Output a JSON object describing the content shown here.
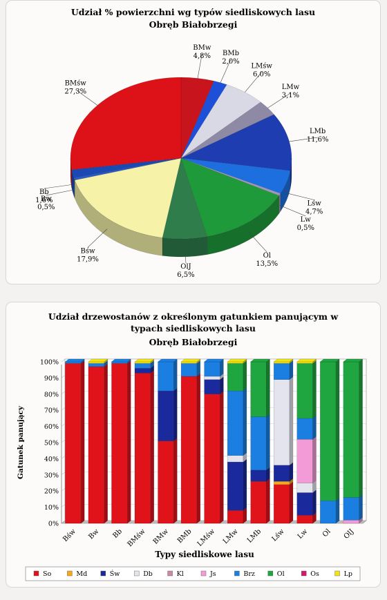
{
  "chart_data": [
    {
      "type": "pie",
      "title": "Udział % powierzchni wg typów siedliskowych lasu",
      "subtitle": "Obręb Białobrzegi",
      "slices": [
        {
          "label": "BMw",
          "value": 4.8,
          "text": "4,8%",
          "color": "#c8141c"
        },
        {
          "label": "BMb",
          "value": 2.0,
          "text": "2,0%",
          "color": "#1e4fd8"
        },
        {
          "label": "LMśw",
          "value": 6.0,
          "text": "6,0%",
          "color": "#d9d9e6"
        },
        {
          "label": "LMw",
          "value": 3.1,
          "text": "3,1%",
          "color": "#8e8aa5"
        },
        {
          "label": "LMb",
          "value": 11.6,
          "text": "11,6%",
          "color": "#1e3db0"
        },
        {
          "label": "Lśw",
          "value": 4.7,
          "text": "4,7%",
          "color": "#1d6fe0"
        },
        {
          "label": "Lw",
          "value": 0.5,
          "text": "0,5%",
          "color": "#9a9ab8"
        },
        {
          "label": "Ol",
          "value": 13.5,
          "text": "13,5%",
          "color": "#1e9a3a"
        },
        {
          "label": "OlJ",
          "value": 6.5,
          "text": "6,5%",
          "color": "#2e7d4b"
        },
        {
          "label": "Bśw",
          "value": 17.9,
          "text": "17,9%",
          "color": "#f6f3a8"
        },
        {
          "label": "Bw",
          "value": 0.5,
          "text": "0,5%",
          "color": "#2a59c8"
        },
        {
          "label": "Bb",
          "value": 1.6,
          "text": "1,6%",
          "color": "#1a49b4"
        },
        {
          "label": "BMśw",
          "value": 27.3,
          "text": "27,3%",
          "color": "#dd1218"
        }
      ]
    },
    {
      "type": "bar",
      "stacked": true,
      "title": "Udział drzewostanów z określonym gatunkiem panującym w typach siedliskowych lasu",
      "subtitle": "Obręb Białobrzegi",
      "xlabel": "Typy siedliskowe lasu",
      "ylabel": "Gatunek panujący",
      "ylim": [
        0,
        100
      ],
      "yticks": [
        "0%",
        "10%",
        "20%",
        "30%",
        "40%",
        "50%",
        "60%",
        "70%",
        "80%",
        "90%",
        "100%"
      ],
      "categories": [
        "Bśw",
        "Bw",
        "Bb",
        "BMśw",
        "BMw",
        "BMb",
        "LMśw",
        "LMw",
        "LMb",
        "Lśw",
        "Lw",
        "Ol",
        "OlJ"
      ],
      "legend_position": "bottom",
      "series": [
        {
          "name": "So",
          "color": "#e0131b",
          "values": [
            99,
            97,
            99,
            93,
            51,
            91,
            80,
            8,
            26,
            24,
            5,
            0,
            0
          ]
        },
        {
          "name": "Md",
          "color": "#f5a81c",
          "values": [
            0,
            0,
            0,
            0,
            0,
            0,
            0,
            0,
            0,
            2,
            0,
            0,
            0
          ]
        },
        {
          "name": "Św",
          "color": "#1a2a9c",
          "values": [
            0,
            0,
            0,
            3,
            31,
            0,
            9,
            30,
            7,
            10,
            14,
            0,
            0
          ]
        },
        {
          "name": "Db",
          "color": "#e4e4ee",
          "values": [
            0,
            0,
            0,
            0,
            0,
            0,
            2,
            4,
            0,
            53,
            6,
            0,
            0
          ]
        },
        {
          "name": "Kl",
          "color": "#c98aa6",
          "values": [
            0,
            0,
            0,
            0,
            0,
            0,
            0,
            0,
            0,
            0,
            0,
            0,
            0
          ]
        },
        {
          "name": "Js",
          "color": "#f29bd6",
          "values": [
            0,
            0,
            0,
            0,
            0,
            0,
            0,
            0,
            0,
            0,
            27,
            0,
            2
          ]
        },
        {
          "name": "Brz",
          "color": "#1b7fe2",
          "values": [
            1,
            2,
            1,
            3,
            18,
            8,
            9,
            40,
            33,
            10,
            13,
            14,
            14
          ]
        },
        {
          "name": "Ol",
          "color": "#1fa640",
          "values": [
            0,
            0,
            0,
            0,
            0,
            0,
            0,
            17,
            34,
            0,
            34,
            86,
            84
          ]
        },
        {
          "name": "Os",
          "color": "#d5166e",
          "values": [
            0,
            0,
            0,
            0,
            0,
            0,
            0,
            0,
            0,
            0,
            0,
            0,
            0
          ]
        },
        {
          "name": "Lp",
          "color": "#f2e414",
          "values": [
            0,
            1,
            0,
            1,
            0,
            1,
            0,
            1,
            0,
            1,
            1,
            0,
            0
          ]
        }
      ]
    }
  ]
}
